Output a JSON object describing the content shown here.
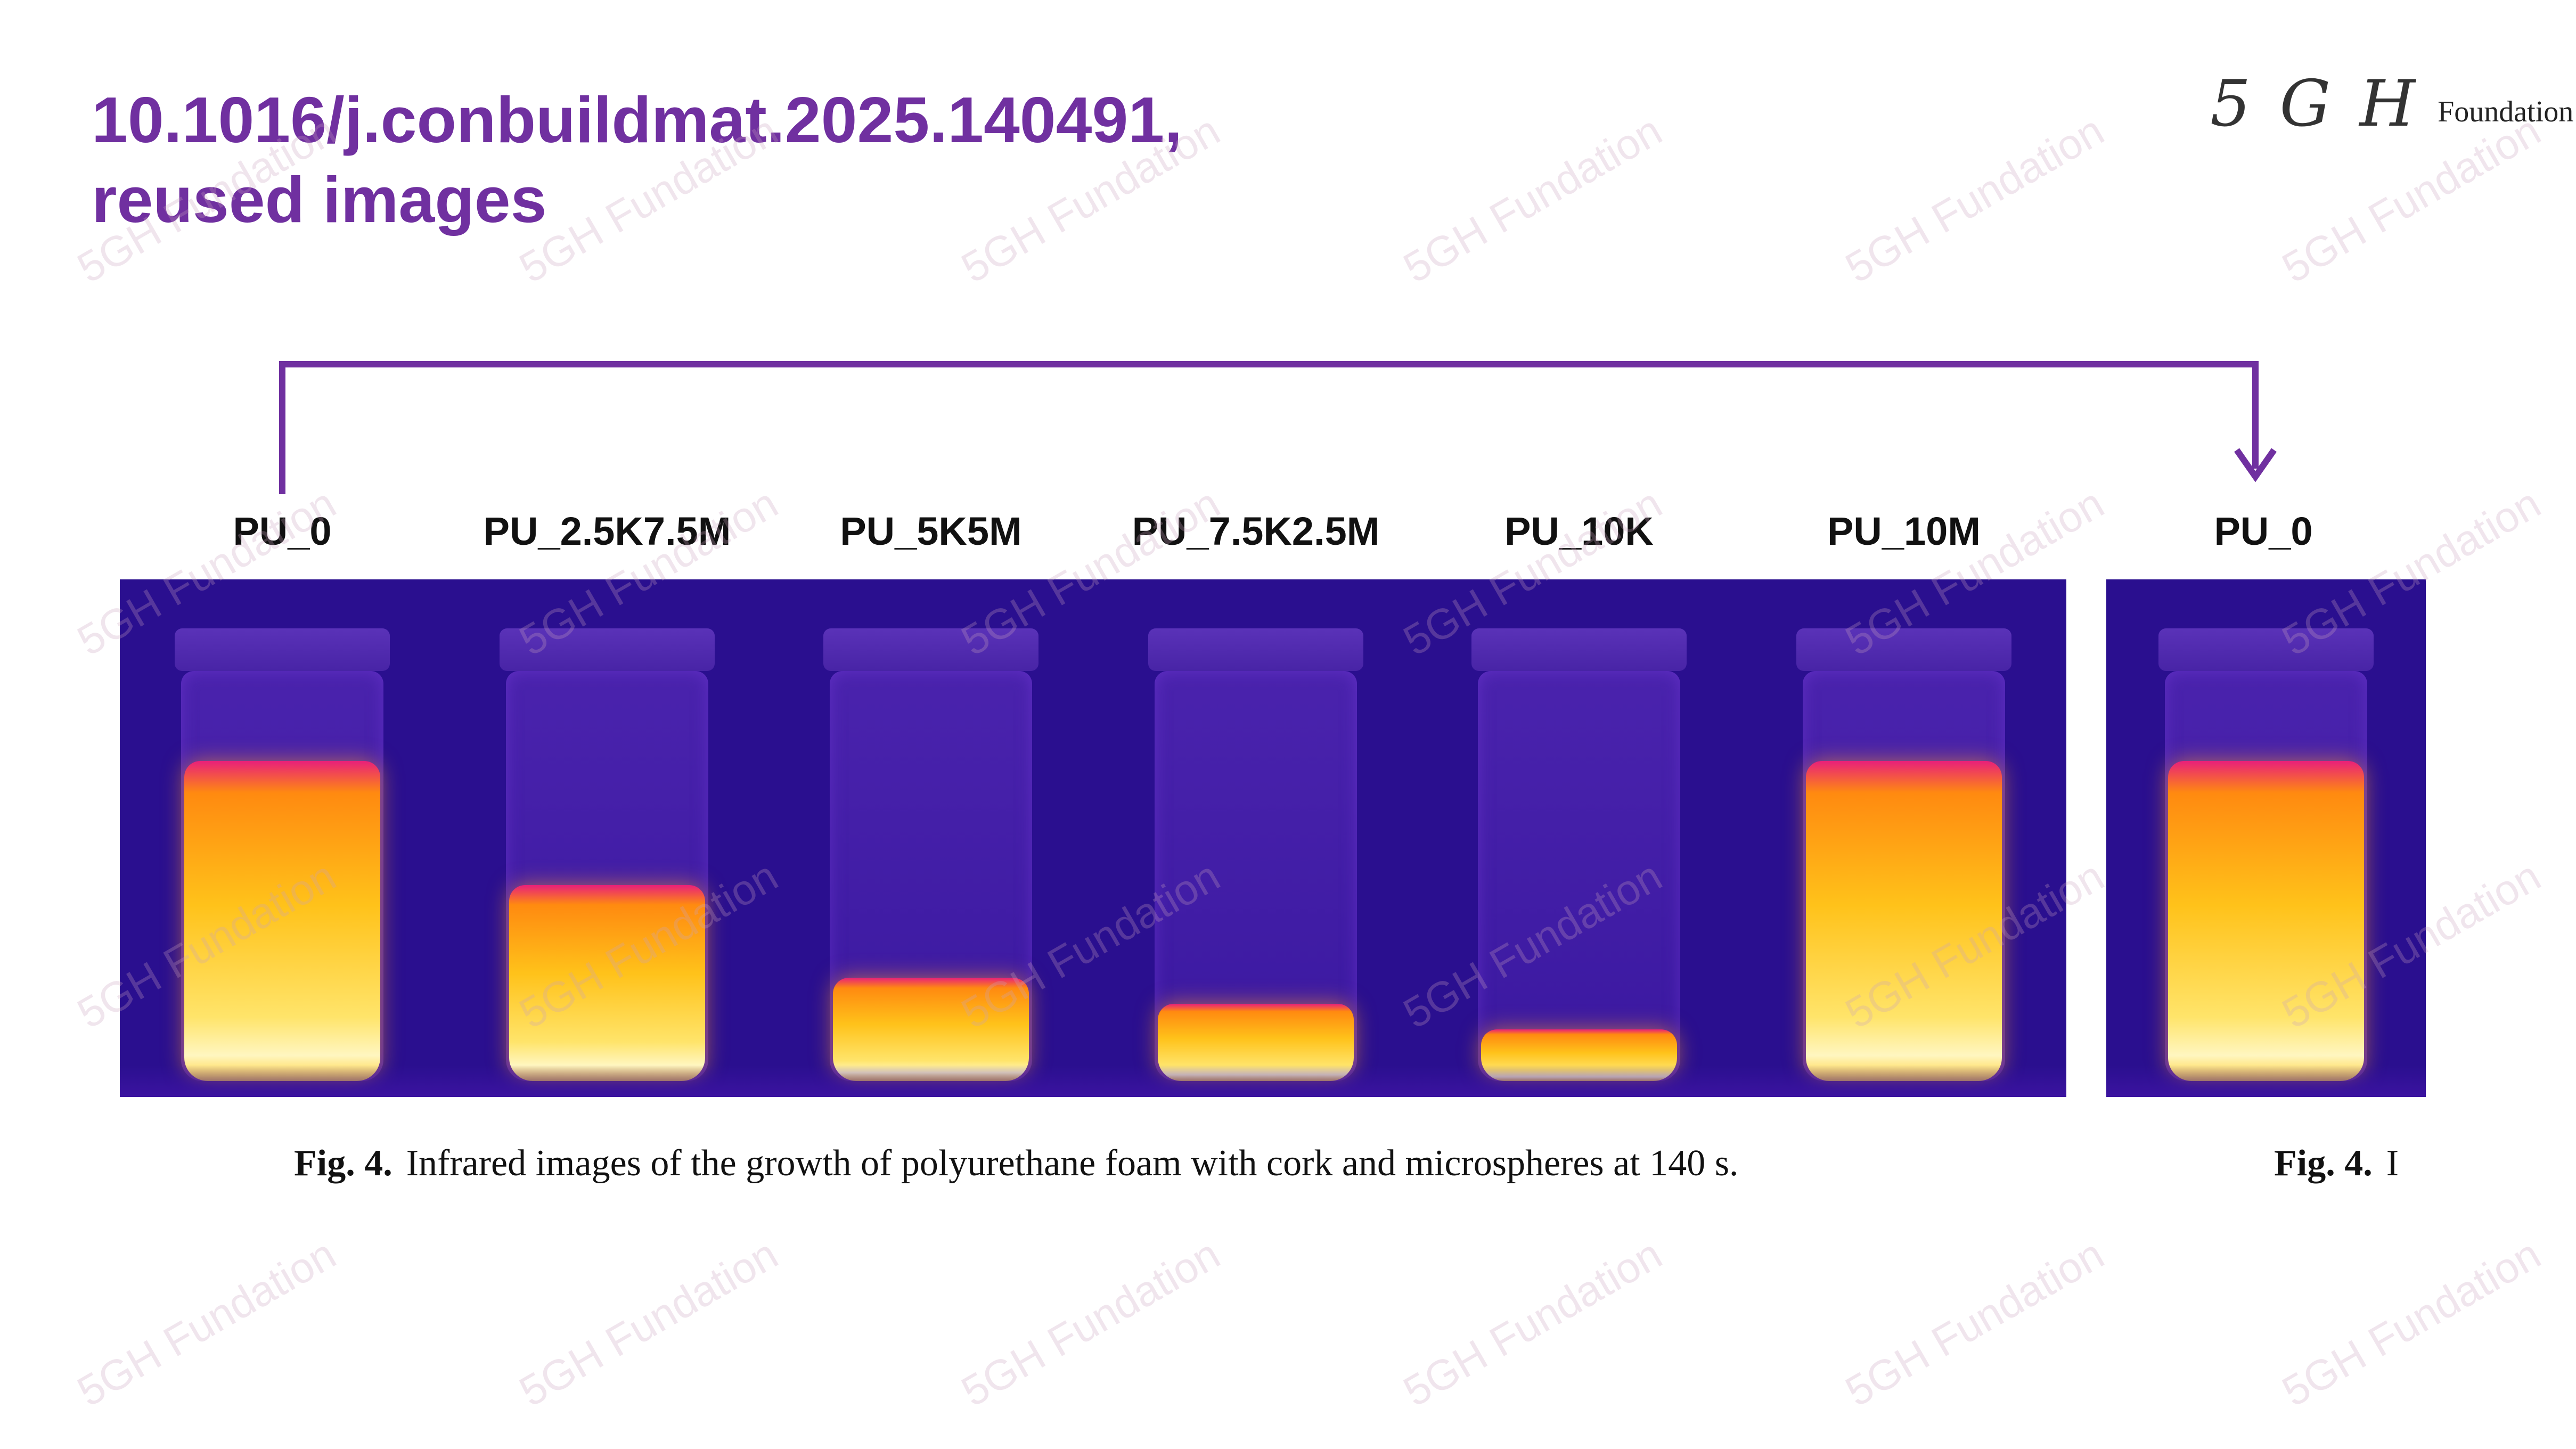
{
  "title": {
    "line1": "10.1016/j.conbuildmat.2025.140491,",
    "line2": "reused images"
  },
  "logo": {
    "mark": "5 G H",
    "word": "Foundation"
  },
  "labels": [
    "PU_0",
    "PU_2.5K7.5M",
    "PU_5K5M",
    "PU_7.5K2.5M",
    "PU_10K",
    "PU_10M",
    "PU_0"
  ],
  "caption": {
    "label": "Fig. 4.",
    "text": "Infrared images of the growth of polyurethane foam with cork and microspheres at 140 s."
  },
  "caption_dup": {
    "label": "Fig. 4.",
    "text": "I"
  },
  "watermark": "5GH Fundation",
  "foam_levels": [
    0.62,
    0.38,
    0.2,
    0.15,
    0.1,
    0.62,
    0.62
  ],
  "colors": {
    "accent": "#7030a0",
    "infrared_background": "#2a0f8f",
    "foam_hot": "#ffc21a"
  }
}
